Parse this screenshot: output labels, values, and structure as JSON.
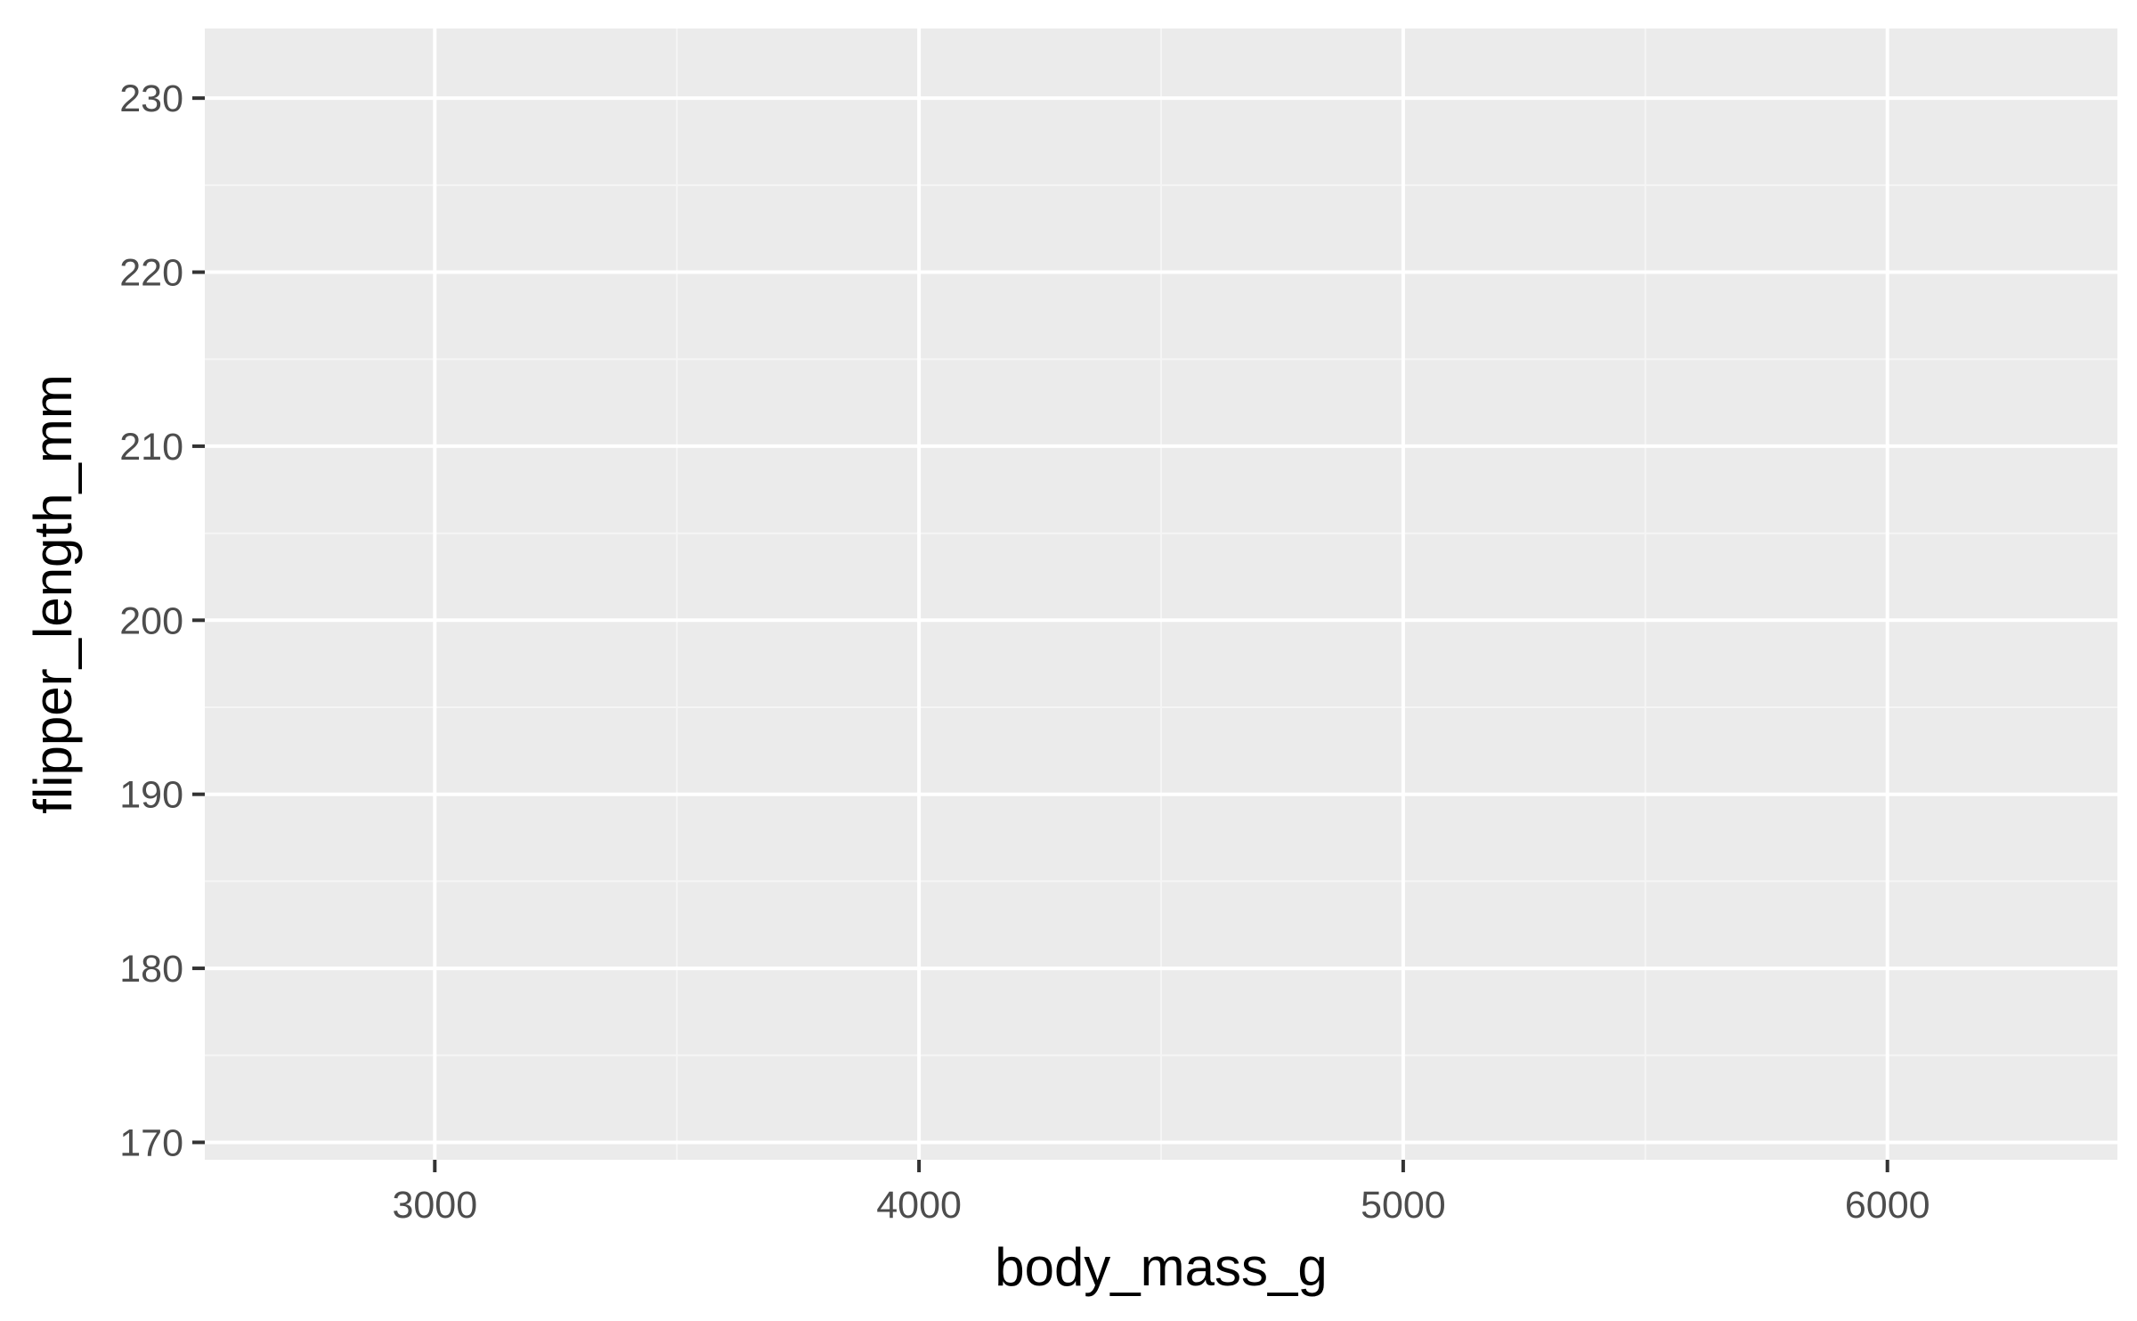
{
  "chart_data": {
    "type": "scatter",
    "title": "",
    "xlabel": "body_mass_g",
    "ylabel": "flipper_length_mm",
    "xlim": [
      2525,
      6475
    ],
    "ylim": [
      169.0,
      234.0
    ],
    "x_ticks": [
      3000,
      4000,
      5000,
      6000
    ],
    "y_ticks": [
      170,
      180,
      190,
      200,
      210,
      220,
      230
    ],
    "x": [],
    "y": [],
    "grid": true,
    "legend": "none",
    "colors": {
      "panel_background": "#ebebeb",
      "grid_major": "#ffffff",
      "grid_minor": "#f5f5f5",
      "tick_mark": "#333333",
      "tick_label": "#4d4d4d",
      "axis_title": "#000000"
    }
  }
}
